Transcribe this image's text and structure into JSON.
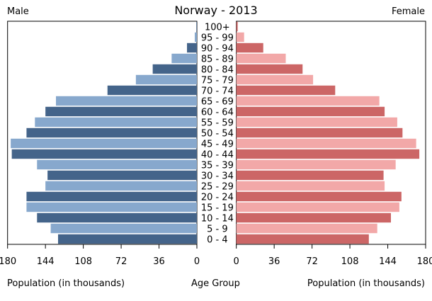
{
  "chart_data": {
    "type": "bar",
    "title": "Norway - 2013",
    "left_label": "Male",
    "right_label": "Female",
    "xlabel_left": "Population (in thousands)",
    "xlabel_center": "Age Group",
    "xlabel_right": "Population (in thousands)",
    "xlim": [
      0,
      180
    ],
    "ticks": [
      180,
      144,
      108,
      72,
      36,
      0
    ],
    "ticks_right": [
      0,
      36,
      72,
      108,
      144,
      180
    ],
    "categories": [
      "100+",
      "95 - 99",
      "90 - 94",
      "85 - 89",
      "80 - 84",
      "75 - 79",
      "70 - 74",
      "65 - 69",
      "60 - 64",
      "55 - 59",
      "50 - 54",
      "45 - 49",
      "40 - 44",
      "35 - 39",
      "30 - 34",
      "25 - 29",
      "20 - 24",
      "15 - 19",
      "10 - 14",
      "5 - 9",
      "0 - 4"
    ],
    "series": [
      {
        "name": "Male",
        "values": [
          0.5,
          2,
          9.4,
          24,
          42,
          58,
          85,
          134,
          144,
          154,
          162,
          177,
          176,
          152,
          142,
          144,
          162,
          162,
          152,
          139,
          132
        ]
      },
      {
        "name": "Female",
        "values": [
          1.3,
          7.4,
          25.6,
          47,
          63,
          73,
          94,
          136,
          141,
          153,
          158,
          171,
          174,
          151.5,
          140,
          141,
          157,
          155,
          147,
          134,
          126
        ]
      }
    ],
    "colors": {
      "male_dark": "#44648a",
      "male_light": "#87a8cd",
      "female_dark": "#cc6666",
      "female_light": "#f2a8a8"
    }
  }
}
